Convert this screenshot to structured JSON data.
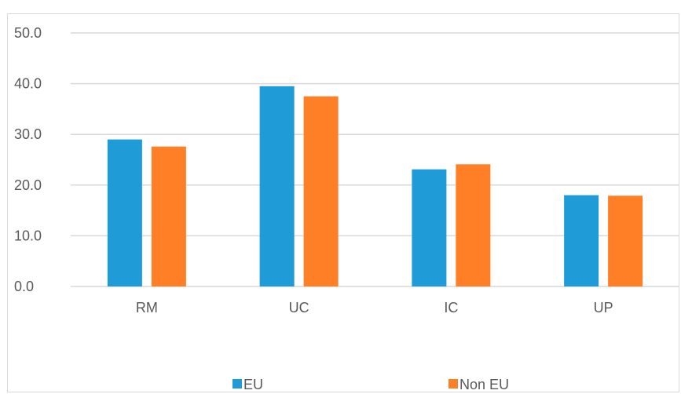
{
  "chart_data": {
    "type": "bar",
    "categories": [
      "RM",
      "UC",
      "IC",
      "UP"
    ],
    "series": [
      {
        "name": "EU",
        "values": [
          29.0,
          39.5,
          23.1,
          18.0
        ],
        "color": "#1f9bd7"
      },
      {
        "name": "Non EU",
        "values": [
          27.6,
          37.5,
          24.1,
          17.9
        ],
        "color": "#ff7f27"
      }
    ],
    "yticks": [
      "0.0",
      "10.0",
      "20.0",
      "30.0",
      "40.0",
      "50.0"
    ],
    "ylim": [
      0,
      50
    ],
    "grid": true,
    "legend_position": "bottom"
  }
}
